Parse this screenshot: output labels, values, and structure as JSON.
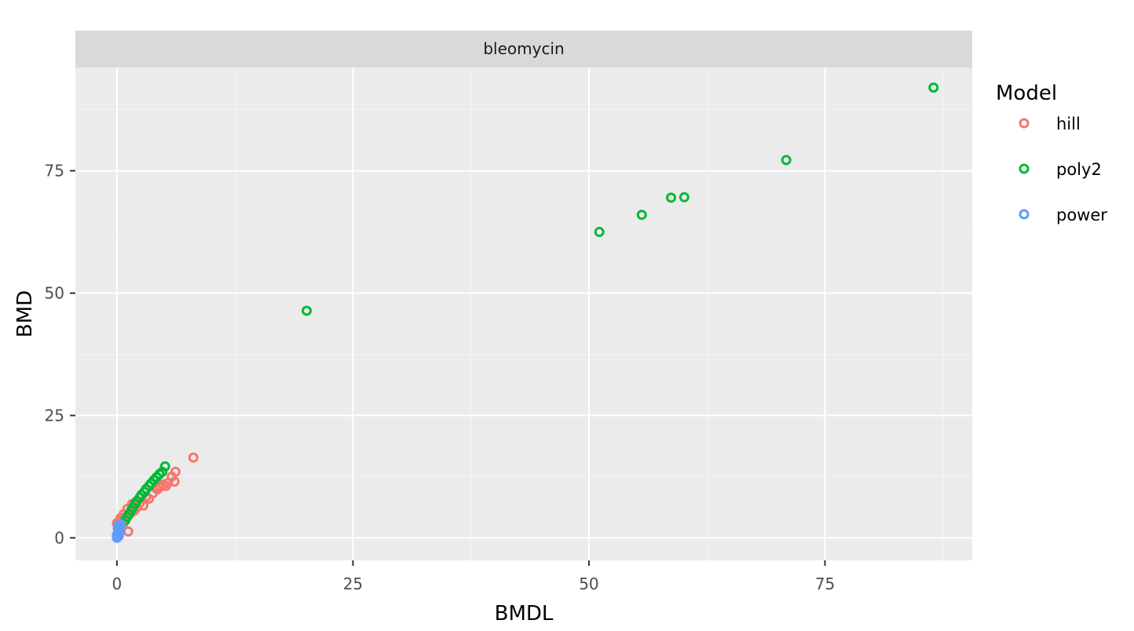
{
  "chart_data": {
    "type": "scatter",
    "facet": "bleomycin",
    "xlabel": "BMDL",
    "ylabel": "BMD",
    "xlim": [
      -4.4,
      90.6
    ],
    "ylim": [
      -4.6,
      96.1
    ],
    "xticks": [
      0,
      25,
      50,
      75
    ],
    "yticks": [
      0,
      25,
      50,
      75
    ],
    "grid": true,
    "legend": {
      "title": "Model",
      "position": "right"
    },
    "colors": {
      "hill": "#f8766d",
      "poly2": "#00ba38",
      "power": "#619cff"
    },
    "series": [
      {
        "name": "hill",
        "points": [
          [
            8.1,
            16.4
          ],
          [
            6.2,
            13.5
          ],
          [
            6.1,
            11.5
          ],
          [
            5.8,
            12.5
          ],
          [
            5.4,
            11.2
          ],
          [
            5.2,
            10.6
          ],
          [
            4.9,
            10.9
          ],
          [
            4.6,
            10.4
          ],
          [
            4.3,
            9.9
          ],
          [
            4.1,
            10.2
          ],
          [
            3.8,
            9.1
          ],
          [
            3.4,
            8.0
          ],
          [
            3.1,
            8.4
          ],
          [
            2.8,
            6.6
          ],
          [
            2.4,
            7.1
          ],
          [
            2.1,
            6.2
          ],
          [
            1.8,
            5.5
          ],
          [
            1.6,
            6.9
          ],
          [
            1.3,
            4.8
          ],
          [
            1.2,
            1.3
          ],
          [
            1.1,
            5.9
          ],
          [
            0.9,
            4.2
          ],
          [
            0.7,
            4.8
          ],
          [
            0.5,
            3.6
          ],
          [
            0.4,
            4.1
          ],
          [
            0.3,
            2.8
          ],
          [
            0.2,
            3.3
          ],
          [
            0.1,
            2.1
          ],
          [
            0.0,
            3.0
          ],
          [
            0.6,
            2.5
          ]
        ]
      },
      {
        "name": "poly2",
        "points": [
          [
            86.5,
            92.0
          ],
          [
            70.9,
            77.2
          ],
          [
            60.1,
            69.6
          ],
          [
            58.7,
            69.5
          ],
          [
            55.6,
            66.0
          ],
          [
            51.1,
            62.5
          ],
          [
            20.1,
            46.4
          ],
          [
            5.1,
            14.6
          ],
          [
            4.8,
            13.5
          ],
          [
            4.5,
            13.0
          ],
          [
            4.2,
            12.4
          ],
          [
            3.9,
            11.8
          ],
          [
            3.6,
            11.1
          ],
          [
            3.4,
            10.6
          ],
          [
            3.1,
            10.0
          ],
          [
            2.9,
            9.4
          ],
          [
            2.6,
            8.8
          ],
          [
            2.4,
            8.2
          ],
          [
            2.1,
            7.5
          ],
          [
            1.9,
            6.9
          ],
          [
            1.7,
            6.2
          ],
          [
            1.5,
            5.6
          ],
          [
            1.3,
            4.9
          ],
          [
            1.1,
            4.3
          ],
          [
            0.9,
            3.6
          ]
        ]
      },
      {
        "name": "power",
        "points": [
          [
            0.1,
            0.2
          ],
          [
            0.0,
            0.6
          ],
          [
            0.1,
            1.0
          ],
          [
            0.2,
            1.4
          ],
          [
            0.1,
            1.8
          ],
          [
            0.3,
            2.2
          ],
          [
            0.2,
            2.6
          ],
          [
            0.4,
            2.8
          ],
          [
            0.0,
            0.0
          ],
          [
            0.2,
            0.4
          ],
          [
            0.3,
            1.2
          ],
          [
            0.1,
            2.4
          ]
        ]
      }
    ]
  }
}
